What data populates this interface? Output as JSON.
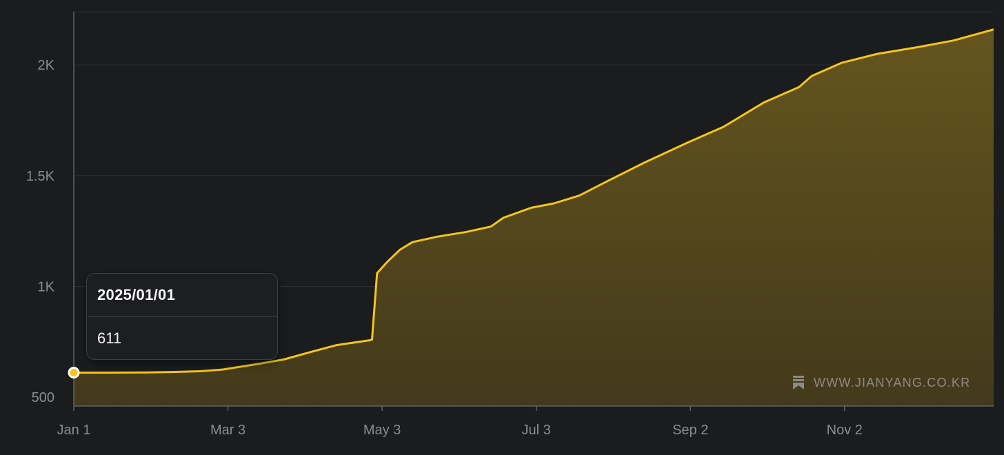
{
  "chart_data": {
    "type": "area",
    "x_start": "2025/01/01",
    "x": [
      "2025/01/01",
      "2025/01/15",
      "2025/01/30",
      "2025/02/10",
      "2025/02/20",
      "2025/03/01",
      "2025/03/15",
      "2025/03/25",
      "2025/04/05",
      "2025/04/15",
      "2025/04/28",
      "2025/04/29",
      "2025/05/01",
      "2025/05/05",
      "2025/05/10",
      "2025/05/15",
      "2025/05/25",
      "2025/06/05",
      "2025/06/15",
      "2025/06/20",
      "2025/07/01",
      "2025/07/10",
      "2025/07/20",
      "2025/08/01",
      "2025/08/15",
      "2025/09/01",
      "2025/09/15",
      "2025/10/01",
      "2025/10/15",
      "2025/10/20",
      "2025/11/01",
      "2025/11/15",
      "2025/12/01",
      "2025/12/15",
      "2025/12/31"
    ],
    "y": [
      611,
      611,
      612,
      614,
      617,
      625,
      650,
      670,
      705,
      735,
      757,
      760,
      1060,
      1110,
      1165,
      1200,
      1225,
      1245,
      1270,
      1310,
      1355,
      1375,
      1410,
      1480,
      1560,
      1650,
      1720,
      1830,
      1900,
      1950,
      2010,
      2050,
      2080,
      2110,
      2160
    ],
    "ylim": [
      460,
      2240
    ],
    "yticks": [
      500,
      1000,
      1500,
      2000
    ],
    "ytick_labels": [
      "500",
      "1K",
      "1.5K",
      "2K"
    ],
    "xticks": [
      "2025/01/01",
      "2025/03/03",
      "2025/05/03",
      "2025/07/03",
      "2025/09/02",
      "2025/11/02"
    ],
    "xtick_labels": [
      "Jan 1",
      "Mar 3",
      "May 3",
      "Jul 3",
      "Sep 2",
      "Nov 2"
    ],
    "grid": true,
    "line_color": "#f5c518",
    "fill_color": "#6b5a1e",
    "background": "#1b1c1e"
  },
  "tooltip": {
    "date": "2025/01/01",
    "value": "611"
  },
  "watermark": {
    "text": "WWW.JIANYANG.CO.KR",
    "icon": "bookmark-stack-icon"
  }
}
